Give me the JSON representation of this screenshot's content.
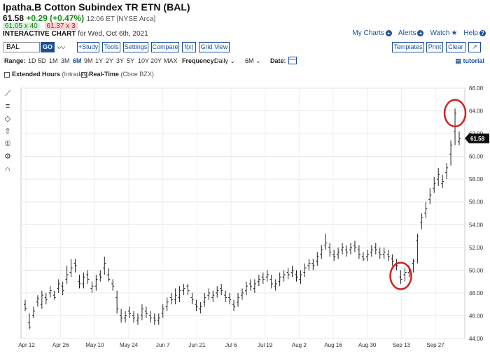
{
  "header": {
    "title": "Ipatha.B Cotton Subindex TR ETN (BAL)",
    "last": "61.58",
    "change": "+0.29 (+0.47%)",
    "time": "12:06 ET [NYSE Arca]",
    "bid": "61.05 x 40",
    "ask": "61.37 x 3",
    "interactive_label": "INTERACTIVE CHART",
    "interactive_date": "for Wed, Oct 6th, 2021"
  },
  "top_links": [
    "My Charts",
    "Alerts",
    "Watch",
    "Help"
  ],
  "toolbar": {
    "symbol_value": "BAL",
    "go_label": "GO",
    "squiggle": "〰",
    "buttons_left": [
      "+Study",
      "Tools",
      "Settings",
      "Compare",
      "f(x)",
      "Grid View"
    ],
    "buttons_right": [
      "Templates",
      "Print",
      "Clear",
      "↗"
    ]
  },
  "range": {
    "label": "Range:",
    "options": [
      "1D",
      "5D",
      "1M",
      "3M",
      "6M",
      "9M",
      "1Y",
      "2Y",
      "3Y",
      "5Y",
      "10Y",
      "20Y",
      "MAX"
    ],
    "active": "6M",
    "frequency_label": "Frequency:",
    "frequency_value": "Daily",
    "interval_value": "6M",
    "date_label": "Date:",
    "tutorial_label": "tutorial"
  },
  "options": {
    "extended_hours": "Extended Hours",
    "extended_sub": "(Intraday)",
    "realtime": "Real-Time",
    "realtime_sub": "(Cboe BZX)"
  },
  "side_tools": [
    "line-tool-icon",
    "fib-tool-icon",
    "shape-tool-icon",
    "arrow-tool-icon",
    "annotation-tool-icon",
    "settings-tool-icon",
    "magnet-tool-icon"
  ],
  "chart_data": {
    "type": "ohlc",
    "x_ticks": [
      "Apr 12",
      "Apr 26",
      "May 10",
      "May 24",
      "Jun 7",
      "Jun 21",
      "Jul 6",
      "Jul 19",
      "Aug 2",
      "Aug 16",
      "Aug 30",
      "Sep 13",
      "Sep 27"
    ],
    "y_ticks": [
      "44.00",
      "46.00",
      "48.00",
      "50.00",
      "52.00",
      "54.00",
      "56.00",
      "58.00",
      "60.00",
      "62.00",
      "64.00",
      "66.00"
    ],
    "ylim": [
      44,
      66
    ],
    "last_price_label": "61.58",
    "last_price": 61.58,
    "highlight_color": "#d42020",
    "bars": [
      [
        47.0,
        46.6
      ],
      [
        45.4,
        45.0
      ],
      [
        46.0,
        46.4
      ],
      [
        47.2,
        47.5
      ],
      [
        47.0,
        47.8
      ],
      [
        47.6,
        47.4
      ],
      [
        48.0,
        48.2
      ],
      [
        47.8,
        47.6
      ],
      [
        48.4,
        48.8
      ],
      [
        48.6,
        48.2
      ],
      [
        49.2,
        49.6
      ],
      [
        49.8,
        50.2
      ],
      [
        50.6,
        50.4
      ],
      [
        49.0,
        48.8
      ],
      [
        48.8,
        49.4
      ],
      [
        49.6,
        49.2
      ],
      [
        48.4,
        48.6
      ],
      [
        48.6,
        49.2
      ],
      [
        49.6,
        49.4
      ],
      [
        50.2,
        50.6
      ],
      [
        49.6,
        49.2
      ],
      [
        48.8,
        48.6
      ],
      [
        47.6,
        46.6
      ],
      [
        46.0,
        45.8
      ],
      [
        45.8,
        46.0
      ],
      [
        46.4,
        46.2
      ],
      [
        46.0,
        45.8
      ],
      [
        45.6,
        45.8
      ],
      [
        46.0,
        46.6
      ],
      [
        46.4,
        46.2
      ],
      [
        46.0,
        45.8
      ],
      [
        45.8,
        45.6
      ],
      [
        45.6,
        45.8
      ],
      [
        46.2,
        46.6
      ],
      [
        46.8,
        47.2
      ],
      [
        47.6,
        47.4
      ],
      [
        47.4,
        47.8
      ],
      [
        47.6,
        48.2
      ],
      [
        48.2,
        48.4
      ],
      [
        48.6,
        48.2
      ],
      [
        47.6,
        47.4
      ],
      [
        47.0,
        46.8
      ],
      [
        46.6,
        46.8
      ],
      [
        47.2,
        47.6
      ],
      [
        47.8,
        48.0
      ],
      [
        47.6,
        47.8
      ],
      [
        48.0,
        48.2
      ],
      [
        48.4,
        48.2
      ],
      [
        47.8,
        47.6
      ],
      [
        47.6,
        47.4
      ],
      [
        47.0,
        46.8
      ],
      [
        47.2,
        47.6
      ],
      [
        47.8,
        48.0
      ],
      [
        48.2,
        48.6
      ],
      [
        48.8,
        48.6
      ],
      [
        48.4,
        48.8
      ],
      [
        49.0,
        49.2
      ],
      [
        49.4,
        49.2
      ],
      [
        49.4,
        49.6
      ],
      [
        49.2,
        48.8
      ],
      [
        48.6,
        48.8
      ],
      [
        49.0,
        49.4
      ],
      [
        49.4,
        49.6
      ],
      [
        49.8,
        49.6
      ],
      [
        49.8,
        50.0
      ],
      [
        49.6,
        49.4
      ],
      [
        49.2,
        49.6
      ],
      [
        49.8,
        50.2
      ],
      [
        50.4,
        50.6
      ],
      [
        50.6,
        50.4
      ],
      [
        50.8,
        51.2
      ],
      [
        51.4,
        51.8
      ],
      [
        52.2,
        52.4
      ],
      [
        52.0,
        51.6
      ],
      [
        51.4,
        51.2
      ],
      [
        51.4,
        51.6
      ],
      [
        51.8,
        52.0
      ],
      [
        51.8,
        51.6
      ],
      [
        51.8,
        52.0
      ],
      [
        52.2,
        52.0
      ],
      [
        51.8,
        51.4
      ],
      [
        51.2,
        51.0
      ],
      [
        51.2,
        51.4
      ],
      [
        51.6,
        51.8
      ],
      [
        52.0,
        51.8
      ],
      [
        51.6,
        51.4
      ],
      [
        51.4,
        51.6
      ],
      [
        51.4,
        51.2
      ],
      [
        51.0,
        50.8
      ],
      [
        50.6,
        50.4
      ],
      [
        49.4,
        49.2
      ],
      [
        49.6,
        49.8
      ],
      [
        49.8,
        50.0
      ],
      [
        50.6,
        50.8
      ],
      [
        52.6,
        53.0
      ],
      [
        54.2,
        54.6
      ],
      [
        55.0,
        55.4
      ],
      [
        56.2,
        56.6
      ],
      [
        57.2,
        57.6
      ],
      [
        58.0,
        58.4
      ],
      [
        57.6,
        57.8
      ],
      [
        58.6,
        59.0
      ],
      [
        60.2,
        61.0
      ],
      [
        62.2,
        63.8
      ],
      [
        61.29,
        61.58
      ]
    ],
    "bar_ranges": [
      [
        46.4,
        47.4
      ],
      [
        44.8,
        46.2
      ],
      [
        45.8,
        46.8
      ],
      [
        46.8,
        47.8
      ],
      [
        46.6,
        48.2
      ],
      [
        47.0,
        48.0
      ],
      [
        47.6,
        48.6
      ],
      [
        47.4,
        48.2
      ],
      [
        48.0,
        49.2
      ],
      [
        47.8,
        49.0
      ],
      [
        48.8,
        50.4
      ],
      [
        49.4,
        51.0
      ],
      [
        49.8,
        51.0
      ],
      [
        48.4,
        49.6
      ],
      [
        48.4,
        49.8
      ],
      [
        48.8,
        50.0
      ],
      [
        48.0,
        49.0
      ],
      [
        48.2,
        49.6
      ],
      [
        49.0,
        50.0
      ],
      [
        49.6,
        51.2
      ],
      [
        49.0,
        50.2
      ],
      [
        48.2,
        49.2
      ],
      [
        46.2,
        48.2
      ],
      [
        45.4,
        46.6
      ],
      [
        45.4,
        46.4
      ],
      [
        45.8,
        46.8
      ],
      [
        45.4,
        46.4
      ],
      [
        45.2,
        46.2
      ],
      [
        45.6,
        47.0
      ],
      [
        45.8,
        46.8
      ],
      [
        45.4,
        46.4
      ],
      [
        45.2,
        46.2
      ],
      [
        45.2,
        46.2
      ],
      [
        45.8,
        47.0
      ],
      [
        46.4,
        47.6
      ],
      [
        47.0,
        48.0
      ],
      [
        47.0,
        48.4
      ],
      [
        47.2,
        48.6
      ],
      [
        47.8,
        48.8
      ],
      [
        47.8,
        48.8
      ],
      [
        47.0,
        48.0
      ],
      [
        46.4,
        47.4
      ],
      [
        46.2,
        47.2
      ],
      [
        46.8,
        48.0
      ],
      [
        47.4,
        48.4
      ],
      [
        47.2,
        48.2
      ],
      [
        47.6,
        48.6
      ],
      [
        47.8,
        48.8
      ],
      [
        47.2,
        48.2
      ],
      [
        47.0,
        48.0
      ],
      [
        46.4,
        47.4
      ],
      [
        46.8,
        48.0
      ],
      [
        47.4,
        48.4
      ],
      [
        47.8,
        49.0
      ],
      [
        48.2,
        49.2
      ],
      [
        48.0,
        49.2
      ],
      [
        48.6,
        49.6
      ],
      [
        48.8,
        49.8
      ],
      [
        49.0,
        50.0
      ],
      [
        48.4,
        49.6
      ],
      [
        48.2,
        49.2
      ],
      [
        48.6,
        49.8
      ],
      [
        49.0,
        50.0
      ],
      [
        49.2,
        50.2
      ],
      [
        49.4,
        50.4
      ],
      [
        49.0,
        50.0
      ],
      [
        48.8,
        50.0
      ],
      [
        49.4,
        50.6
      ],
      [
        50.0,
        51.0
      ],
      [
        50.0,
        51.0
      ],
      [
        50.4,
        51.6
      ],
      [
        51.0,
        52.2
      ],
      [
        51.8,
        53.2
      ],
      [
        51.2,
        52.4
      ],
      [
        50.8,
        51.8
      ],
      [
        51.0,
        52.0
      ],
      [
        51.4,
        52.4
      ],
      [
        51.2,
        52.2
      ],
      [
        51.4,
        52.4
      ],
      [
        51.6,
        52.6
      ],
      [
        51.0,
        52.2
      ],
      [
        50.8,
        51.6
      ],
      [
        50.8,
        51.8
      ],
      [
        51.2,
        52.2
      ],
      [
        51.4,
        52.4
      ],
      [
        51.0,
        52.0
      ],
      [
        51.0,
        52.0
      ],
      [
        50.8,
        51.8
      ],
      [
        50.4,
        51.4
      ],
      [
        50.0,
        51.0
      ],
      [
        48.8,
        50.0
      ],
      [
        49.0,
        50.2
      ],
      [
        49.4,
        50.4
      ],
      [
        49.8,
        51.0
      ],
      [
        50.6,
        53.2
      ],
      [
        53.6,
        55.0
      ],
      [
        54.6,
        56.0
      ],
      [
        55.8,
        57.2
      ],
      [
        56.8,
        58.2
      ],
      [
        57.4,
        59.0
      ],
      [
        57.2,
        58.4
      ],
      [
        58.0,
        59.4
      ],
      [
        59.2,
        61.4
      ],
      [
        61.0,
        64.2
      ],
      [
        61.0,
        62.2
      ]
    ],
    "highlights": [
      {
        "bar_index": 90,
        "value": 49.5
      },
      {
        "bar_index": 103,
        "value": 63.8
      }
    ]
  }
}
